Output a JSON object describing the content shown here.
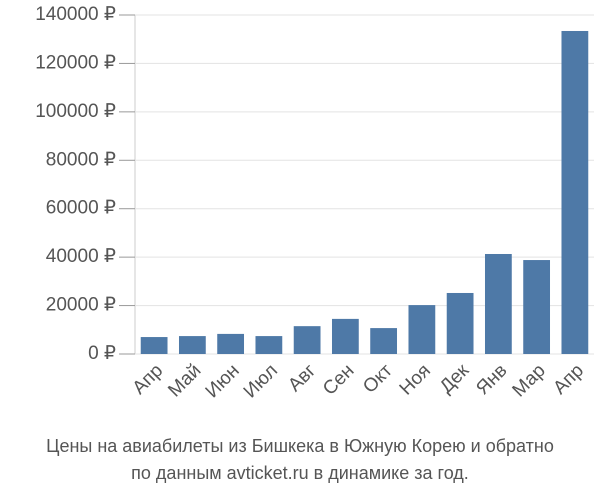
{
  "chart_data": {
    "type": "bar",
    "title": "Цены на авиабилеты из Бишкека в Южную Корею и обратно",
    "subtitle": "по данным avticket.ru в динамике за год.",
    "categories": [
      "Апр",
      "Май",
      "Июн",
      "Июл",
      "Авг",
      "Сен",
      "Окт",
      "Ноя",
      "Дек",
      "Янв",
      "Мар",
      "Апр"
    ],
    "values": [
      7000,
      7400,
      8300,
      7400,
      11500,
      14500,
      10700,
      20200,
      25200,
      41300,
      38800,
      133400
    ],
    "color": "#4e79a7",
    "ylim": [
      0,
      140000
    ],
    "yticks": [
      {
        "value": 0,
        "label": "0 ₽"
      },
      {
        "value": 20000,
        "label": "20000 ₽"
      },
      {
        "value": 40000,
        "label": "40000 ₽"
      },
      {
        "value": 60000,
        "label": "60000 ₽"
      },
      {
        "value": 80000,
        "label": "80000 ₽"
      },
      {
        "value": 100000,
        "label": "100000 ₽"
      },
      {
        "value": 120000,
        "label": "120000 ₽"
      },
      {
        "value": 140000,
        "label": "140000 ₽"
      }
    ],
    "grid": true
  }
}
